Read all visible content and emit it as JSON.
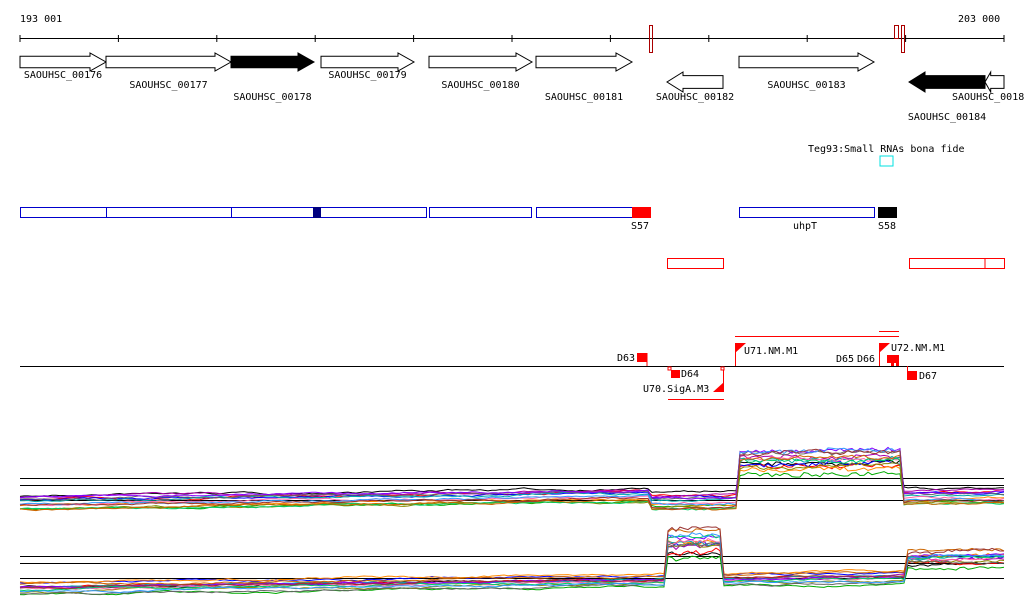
{
  "ruler": {
    "start_label": "193 001",
    "end_label": "203 000"
  },
  "genes": [
    {
      "id": "SAOUHSC_00176",
      "from": 20,
      "to": 106,
      "strand": "+",
      "filled": false,
      "row": 0,
      "label_row": 0
    },
    {
      "id": "SAOUHSC_00177",
      "from": 106,
      "to": 231,
      "strand": "+",
      "filled": false,
      "row": 0,
      "label_row": 1
    },
    {
      "id": "SAOUHSC_00178",
      "from": 231,
      "to": 314,
      "strand": "+",
      "filled": true,
      "row": 0,
      "label_row": 2
    },
    {
      "id": "SAOUHSC_00179",
      "from": 321,
      "to": 414,
      "strand": "+",
      "filled": false,
      "row": 0,
      "label_row": 0
    },
    {
      "id": "SAOUHSC_00180",
      "from": 429,
      "to": 532,
      "strand": "+",
      "filled": false,
      "row": 0,
      "label_row": 1
    },
    {
      "id": "SAOUHSC_00181",
      "from": 536,
      "to": 632,
      "strand": "+",
      "filled": false,
      "row": 0,
      "label_row": 2
    },
    {
      "id": "SAOUHSC_00182",
      "from": 667,
      "to": 723,
      "strand": "-",
      "filled": false,
      "row": 1,
      "label_row": 2
    },
    {
      "id": "SAOUHSC_00183",
      "from": 739,
      "to": 874,
      "strand": "+",
      "filled": false,
      "row": 0,
      "label_row": 1
    },
    {
      "id": "SAOUHSC_00184",
      "from": 909,
      "to": 985,
      "strand": "-",
      "filled": true,
      "row": 1,
      "label_row": 3
    },
    {
      "id": "SAOUHSC_0018",
      "from": 985,
      "to": 1004,
      "strand": "-",
      "filled": false,
      "row": 1,
      "label_row": 2
    }
  ],
  "srna": {
    "label": "Teg93:Small RNAs bona fide",
    "color": "#00e0e0"
  },
  "operon_labels": {
    "s57": "S57",
    "uhpt": "uhpT",
    "s58": "S58"
  },
  "annotations": {
    "d63": "D63",
    "d64": "D64",
    "u70": "U70.SigA.M3",
    "u71": "U71.NM.M1",
    "d65": "D65",
    "d66": "D66",
    "u72": "U72.NM.M1",
    "d67": "D67"
  },
  "colors": {
    "accent_red": "#ff0000",
    "dark_red": "#aa0000",
    "navy": "#000080",
    "blue": "#0000cc"
  },
  "series_colors": [
    "#000000",
    "#ff0000",
    "#00aa00",
    "#0000ff",
    "#ff8800",
    "#aa00aa",
    "#00aaaa",
    "#888800",
    "#ff66aa",
    "#666666",
    "#8800ff",
    "#00cc66",
    "#cc6600",
    "#3399ff",
    "#993333"
  ]
}
